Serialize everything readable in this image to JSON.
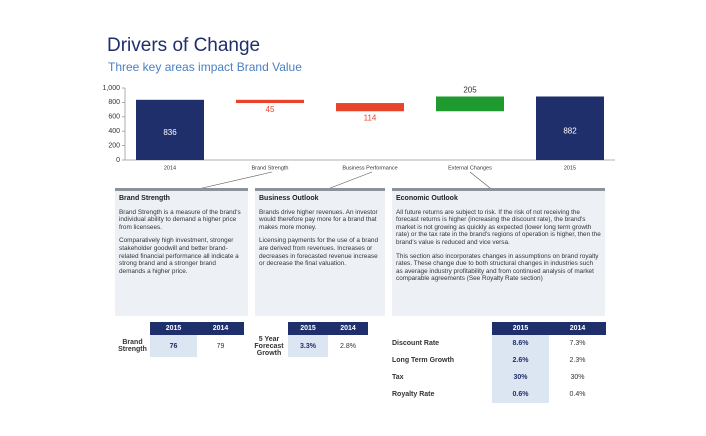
{
  "chart_data": {
    "type": "waterfall",
    "title": "Drivers of Change",
    "subtitle": "Three key areas impact Brand Value",
    "categories": [
      "2014",
      "Brand Strength",
      "Business Performance",
      "External Changes",
      "2015"
    ],
    "values": [
      836,
      -45,
      -114,
      205,
      882
    ],
    "value_labels": [
      "836",
      "45",
      "114",
      "205",
      "882"
    ],
    "colors": {
      "total": "#1f2f6b",
      "increase": "#1e9a2e",
      "decrease": "#e8432b"
    },
    "ylim": [
      0,
      1000
    ],
    "yticks": [
      0,
      200,
      400,
      600,
      800,
      {
        "value": 1000,
        "label": "1,000"
      }
    ]
  },
  "panels": [
    {
      "title": "Brand Strength",
      "paragraphs": [
        "Brand Strength is a measure of the brand's individual ability to demand a higher price from licensees.",
        "Comparatively high investment, stronger stakeholder goodwill and better brand-related financial performance all indicate a strong brand and a stronger brand demands a higher price."
      ]
    },
    {
      "title": "Business Outlook",
      "paragraphs": [
        "Brands drive higher revenues. An investor would therefore pay more for a brand that makes more money.",
        "Licensing payments for the use of a brand are derived from revenues. Increases or decreases in forecasted revenue increase or decrease the final valuation."
      ]
    },
    {
      "title": "Economic Outlook",
      "paragraphs": [
        "All future returns are subject to risk. If the risk of not receiving the forecast returns is higher (increasing the discount rate), the brand's market is not growing as quickly as expected (lower long term growth rate) or the tax rate in the brand's regions of operation is higher, then the brand's value is reduced and vice versa.",
        "This section also incorporates changes in assumptions on brand royalty rates. These change due to both structural changes in industries such as average industry profitability and from continued analysis of market comparable agreements (See Royalty Rate section)"
      ]
    }
  ],
  "tables": [
    {
      "columns": [
        "2015",
        "2014"
      ],
      "rows": [
        {
          "label": "Brand Strength",
          "values": [
            "76",
            "79"
          ]
        }
      ]
    },
    {
      "columns": [
        "2015",
        "2014"
      ],
      "rows": [
        {
          "label": "5 Year Forecast Growth",
          "values": [
            "3.3%",
            "2.8%"
          ]
        }
      ]
    },
    {
      "columns": [
        "2015",
        "2014"
      ],
      "rows": [
        {
          "label": "Discount Rate",
          "values": [
            "8.6%",
            "7.3%"
          ]
        },
        {
          "label": "Long Term Growth",
          "values": [
            "2.6%",
            "2.3%"
          ]
        },
        {
          "label": "Tax",
          "values": [
            "30%",
            "30%"
          ]
        },
        {
          "label": "Royalty Rate",
          "values": [
            "0.6%",
            "0.4%"
          ]
        }
      ]
    }
  ]
}
